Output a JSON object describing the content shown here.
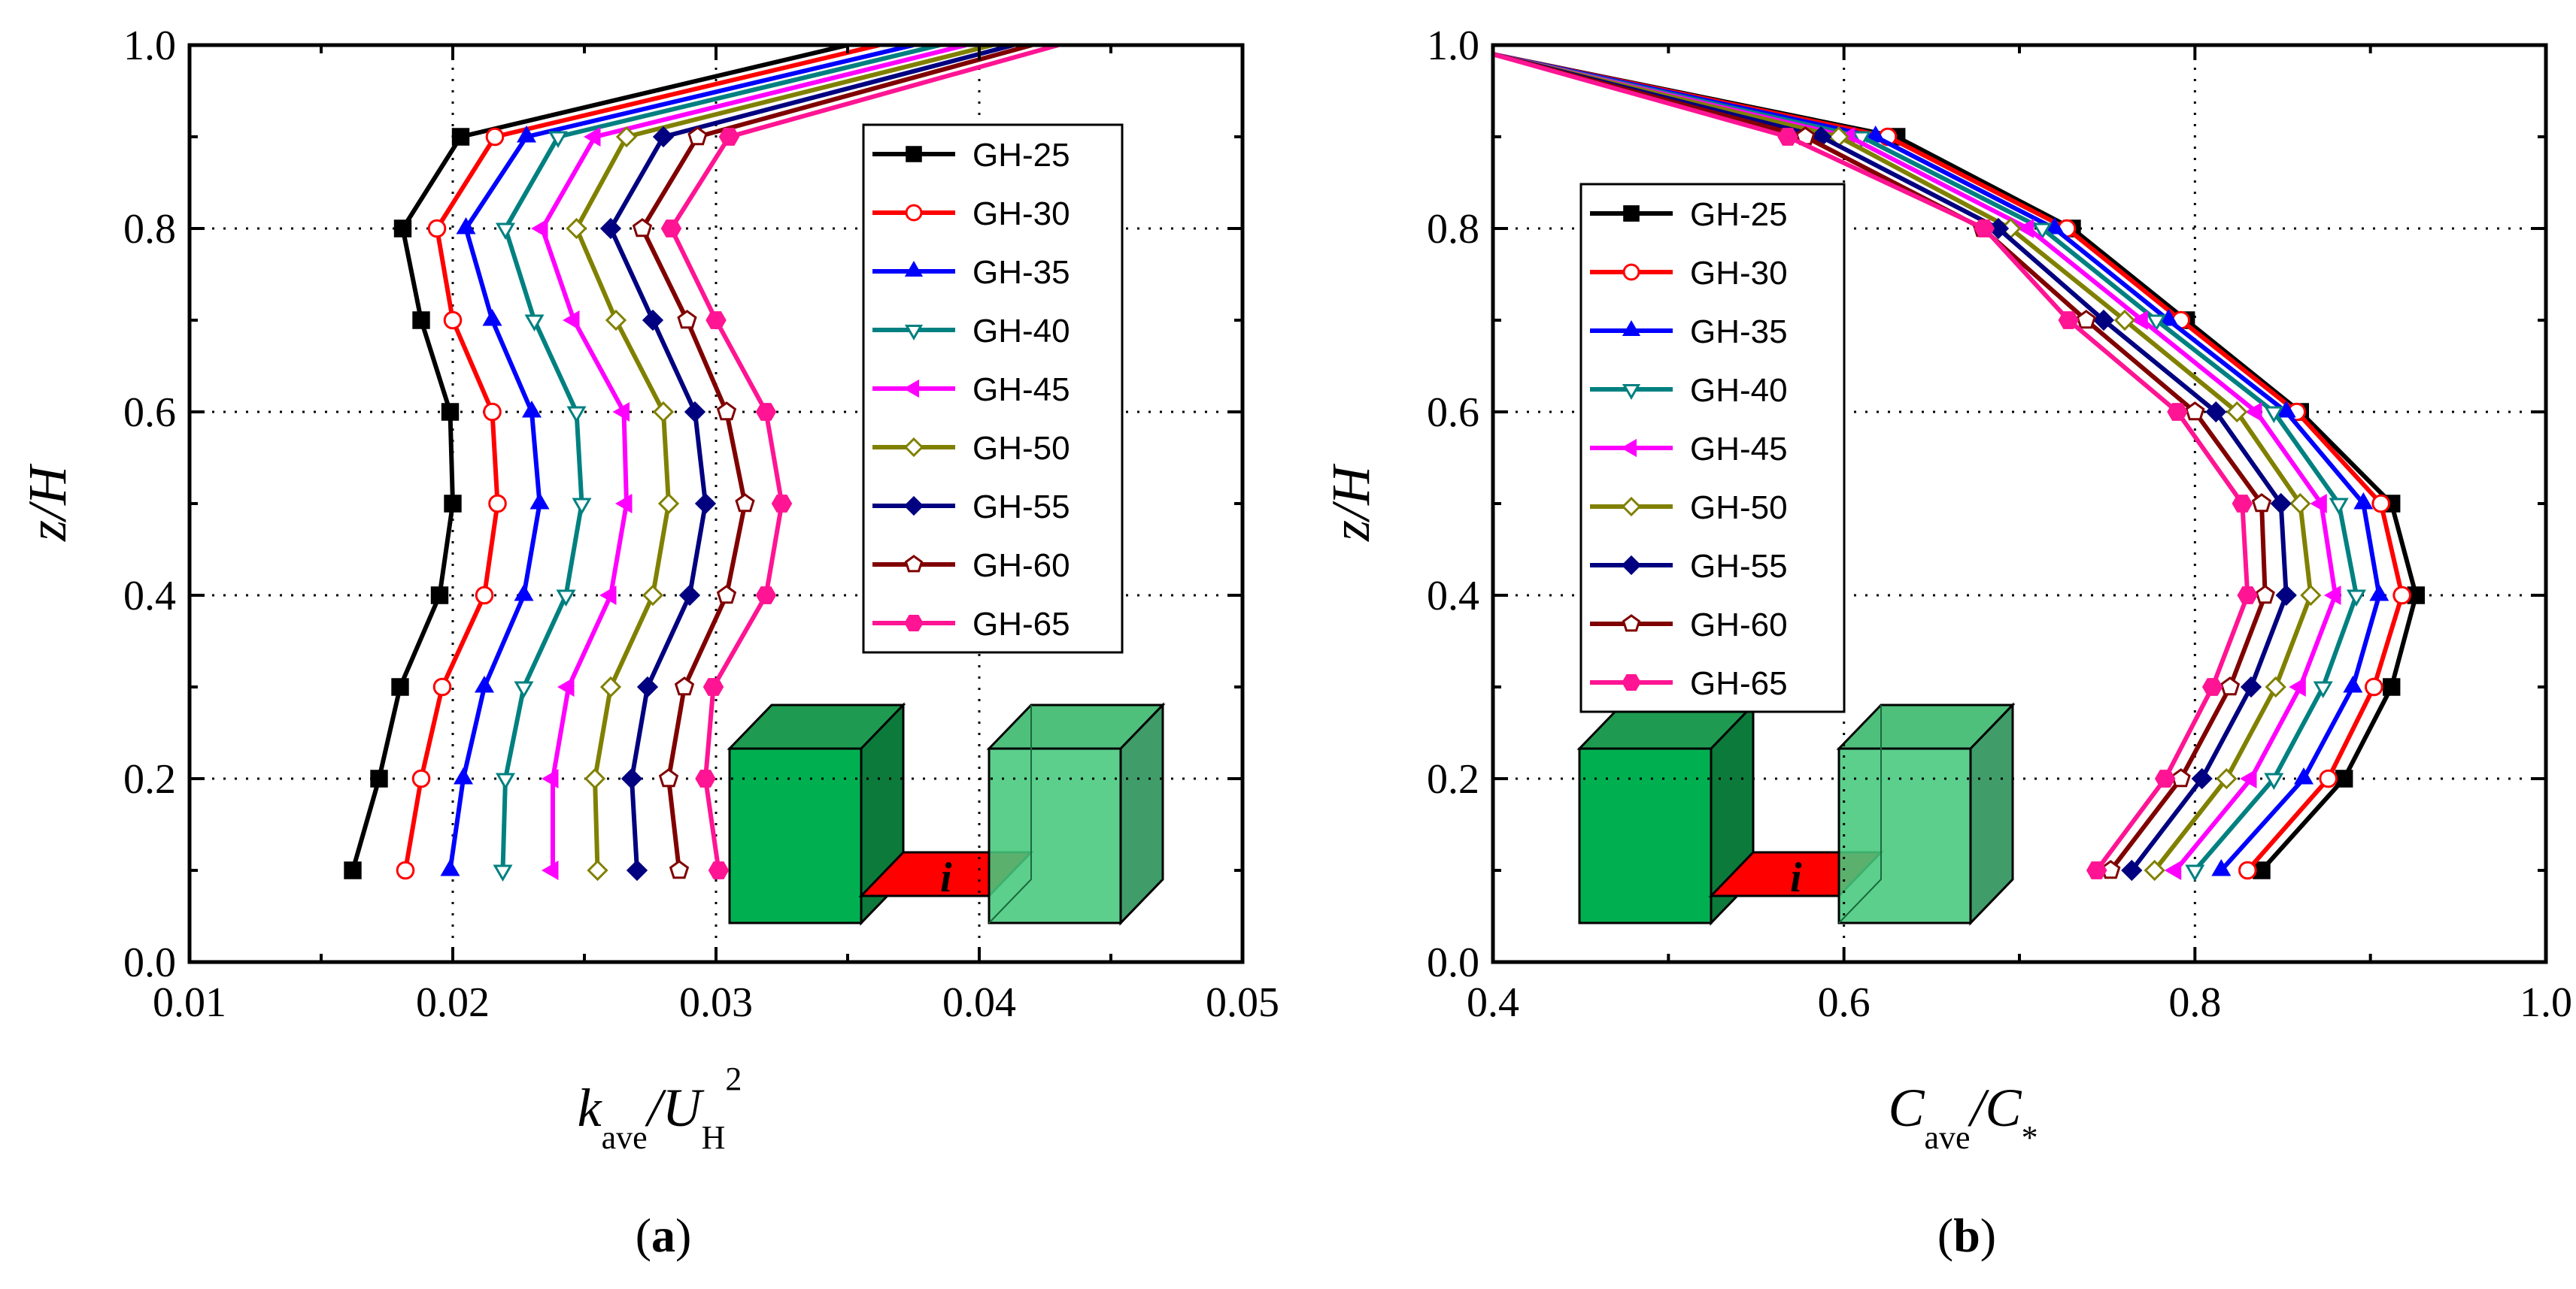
{
  "chart_data": [
    {
      "type": "line",
      "panel_label": "a",
      "xlabel_main": "k",
      "xlabel_sub": "ave",
      "xlabel_div": "/U",
      "xlabel_sub2": "H",
      "xlabel_sup": "2",
      "ylabel": "z/H",
      "xlim": [
        0.01,
        0.05
      ],
      "ylim": [
        0.0,
        1.0
      ],
      "xticks": [
        "0.01",
        "0.02",
        "0.03",
        "0.04",
        "0.05"
      ],
      "yticks": [
        "0.0",
        "0.2",
        "0.4",
        "0.6",
        "0.8",
        "1.0"
      ],
      "grid": "dotted",
      "legend": "top-right",
      "inset_label": "i",
      "y": [
        0.1,
        0.2,
        0.3,
        0.4,
        0.5,
        0.6,
        0.7,
        0.8,
        0.9,
        1.0
      ],
      "series": [
        {
          "name": "GH-25",
          "values": [
            0.0162,
            0.0172,
            0.018,
            0.0195,
            0.02,
            0.0199,
            0.0188,
            0.0181,
            0.0203,
            0.035
          ]
        },
        {
          "name": "GH-30",
          "values": [
            0.0182,
            0.0188,
            0.0196,
            0.0212,
            0.0217,
            0.0215,
            0.02,
            0.0194,
            0.0216,
            0.0362
          ]
        },
        {
          "name": "GH-35",
          "values": [
            0.0199,
            0.0204,
            0.0212,
            0.0227,
            0.0233,
            0.023,
            0.0215,
            0.0205,
            0.0228,
            0.0375
          ]
        },
        {
          "name": "GH-40",
          "values": [
            0.0219,
            0.022,
            0.0227,
            0.0243,
            0.0249,
            0.0247,
            0.0231,
            0.022,
            0.024,
            0.0385
          ]
        },
        {
          "name": "GH-45",
          "values": [
            0.0238,
            0.0238,
            0.0244,
            0.026,
            0.0266,
            0.0265,
            0.0246,
            0.0234,
            0.0254,
            0.0395
          ]
        },
        {
          "name": "GH-50",
          "values": [
            0.0255,
            0.0254,
            0.026,
            0.0276,
            0.0282,
            0.028,
            0.0262,
            0.0247,
            0.0266,
            0.0405
          ]
        },
        {
          "name": "GH-55",
          "values": [
            0.027,
            0.0268,
            0.0274,
            0.029,
            0.0296,
            0.0292,
            0.0276,
            0.026,
            0.028,
            0.0413
          ]
        },
        {
          "name": "GH-60",
          "values": [
            0.0286,
            0.0282,
            0.0288,
            0.0304,
            0.0311,
            0.0304,
            0.0289,
            0.0272,
            0.0293,
            0.042
          ]
        },
        {
          "name": "GH-65",
          "values": [
            0.0301,
            0.0296,
            0.0299,
            0.0319,
            0.0325,
            0.0319,
            0.03,
            0.0283,
            0.0305,
            0.043
          ]
        }
      ]
    },
    {
      "type": "line",
      "panel_label": "b",
      "xlabel_main": "C",
      "xlabel_sub": "ave",
      "xlabel_div": "/C",
      "xlabel_sub2": "*",
      "ylabel": "z/H",
      "xlim": [
        0.4,
        1.0
      ],
      "ylim": [
        0.0,
        1.0
      ],
      "xticks": [
        "0.4",
        "0.6",
        "0.8",
        "1.0"
      ],
      "yticks": [
        "0.0",
        "0.2",
        "0.4",
        "0.6",
        "0.8",
        "1.0"
      ],
      "grid": "dotted",
      "legend": "top-left",
      "inset_label": "i",
      "y": [
        0.1,
        0.2,
        0.3,
        0.4,
        0.5,
        0.6,
        0.7,
        0.8,
        0.9,
        0.99
      ],
      "series": [
        {
          "name": "GH-25",
          "values": [
            0.838,
            0.885,
            0.912,
            0.926,
            0.912,
            0.86,
            0.795,
            0.73,
            0.63,
            0.4
          ]
        },
        {
          "name": "GH-30",
          "values": [
            0.83,
            0.876,
            0.902,
            0.918,
            0.906,
            0.858,
            0.792,
            0.727,
            0.625,
            0.4
          ]
        },
        {
          "name": "GH-35",
          "values": [
            0.815,
            0.862,
            0.89,
            0.905,
            0.896,
            0.852,
            0.785,
            0.72,
            0.618,
            0.4
          ]
        },
        {
          "name": "GH-40",
          "values": [
            0.8,
            0.845,
            0.873,
            0.892,
            0.882,
            0.845,
            0.778,
            0.713,
            0.61,
            0.4
          ]
        },
        {
          "name": "GH-45",
          "values": [
            0.789,
            0.832,
            0.86,
            0.88,
            0.872,
            0.835,
            0.77,
            0.705,
            0.603,
            0.4
          ]
        },
        {
          "name": "GH-50",
          "values": [
            0.777,
            0.818,
            0.846,
            0.866,
            0.86,
            0.824,
            0.76,
            0.695,
            0.597,
            0.4
          ]
        },
        {
          "name": "GH-55",
          "values": [
            0.764,
            0.804,
            0.832,
            0.852,
            0.849,
            0.812,
            0.748,
            0.688,
            0.587,
            0.4
          ]
        },
        {
          "name": "GH-60",
          "values": [
            0.752,
            0.792,
            0.82,
            0.84,
            0.838,
            0.8,
            0.738,
            0.679,
            0.578,
            0.4
          ]
        },
        {
          "name": "GH-65",
          "values": [
            0.744,
            0.783,
            0.81,
            0.83,
            0.827,
            0.79,
            0.728,
            0.68,
            0.568,
            0.4
          ]
        }
      ]
    }
  ],
  "styles": [
    {
      "color": "#000000",
      "marker": "square",
      "fill": "#000000"
    },
    {
      "color": "#ff0000",
      "marker": "circle",
      "fill": "#ffffff"
    },
    {
      "color": "#0000ff",
      "marker": "triangle-up",
      "fill": "#0000ff"
    },
    {
      "color": "#008080",
      "marker": "triangle-down",
      "fill": "#ffffff"
    },
    {
      "color": "#ff00ff",
      "marker": "triangle-left",
      "fill": "#ff00ff"
    },
    {
      "color": "#808000",
      "marker": "diamond",
      "fill": "#ffffff"
    },
    {
      "color": "#000080",
      "marker": "diamond",
      "fill": "#000080"
    },
    {
      "color": "#800000",
      "marker": "pentagon",
      "fill": "#ffffff"
    },
    {
      "color": "#ff1493",
      "marker": "hexagon",
      "fill": "#ff1493"
    }
  ]
}
